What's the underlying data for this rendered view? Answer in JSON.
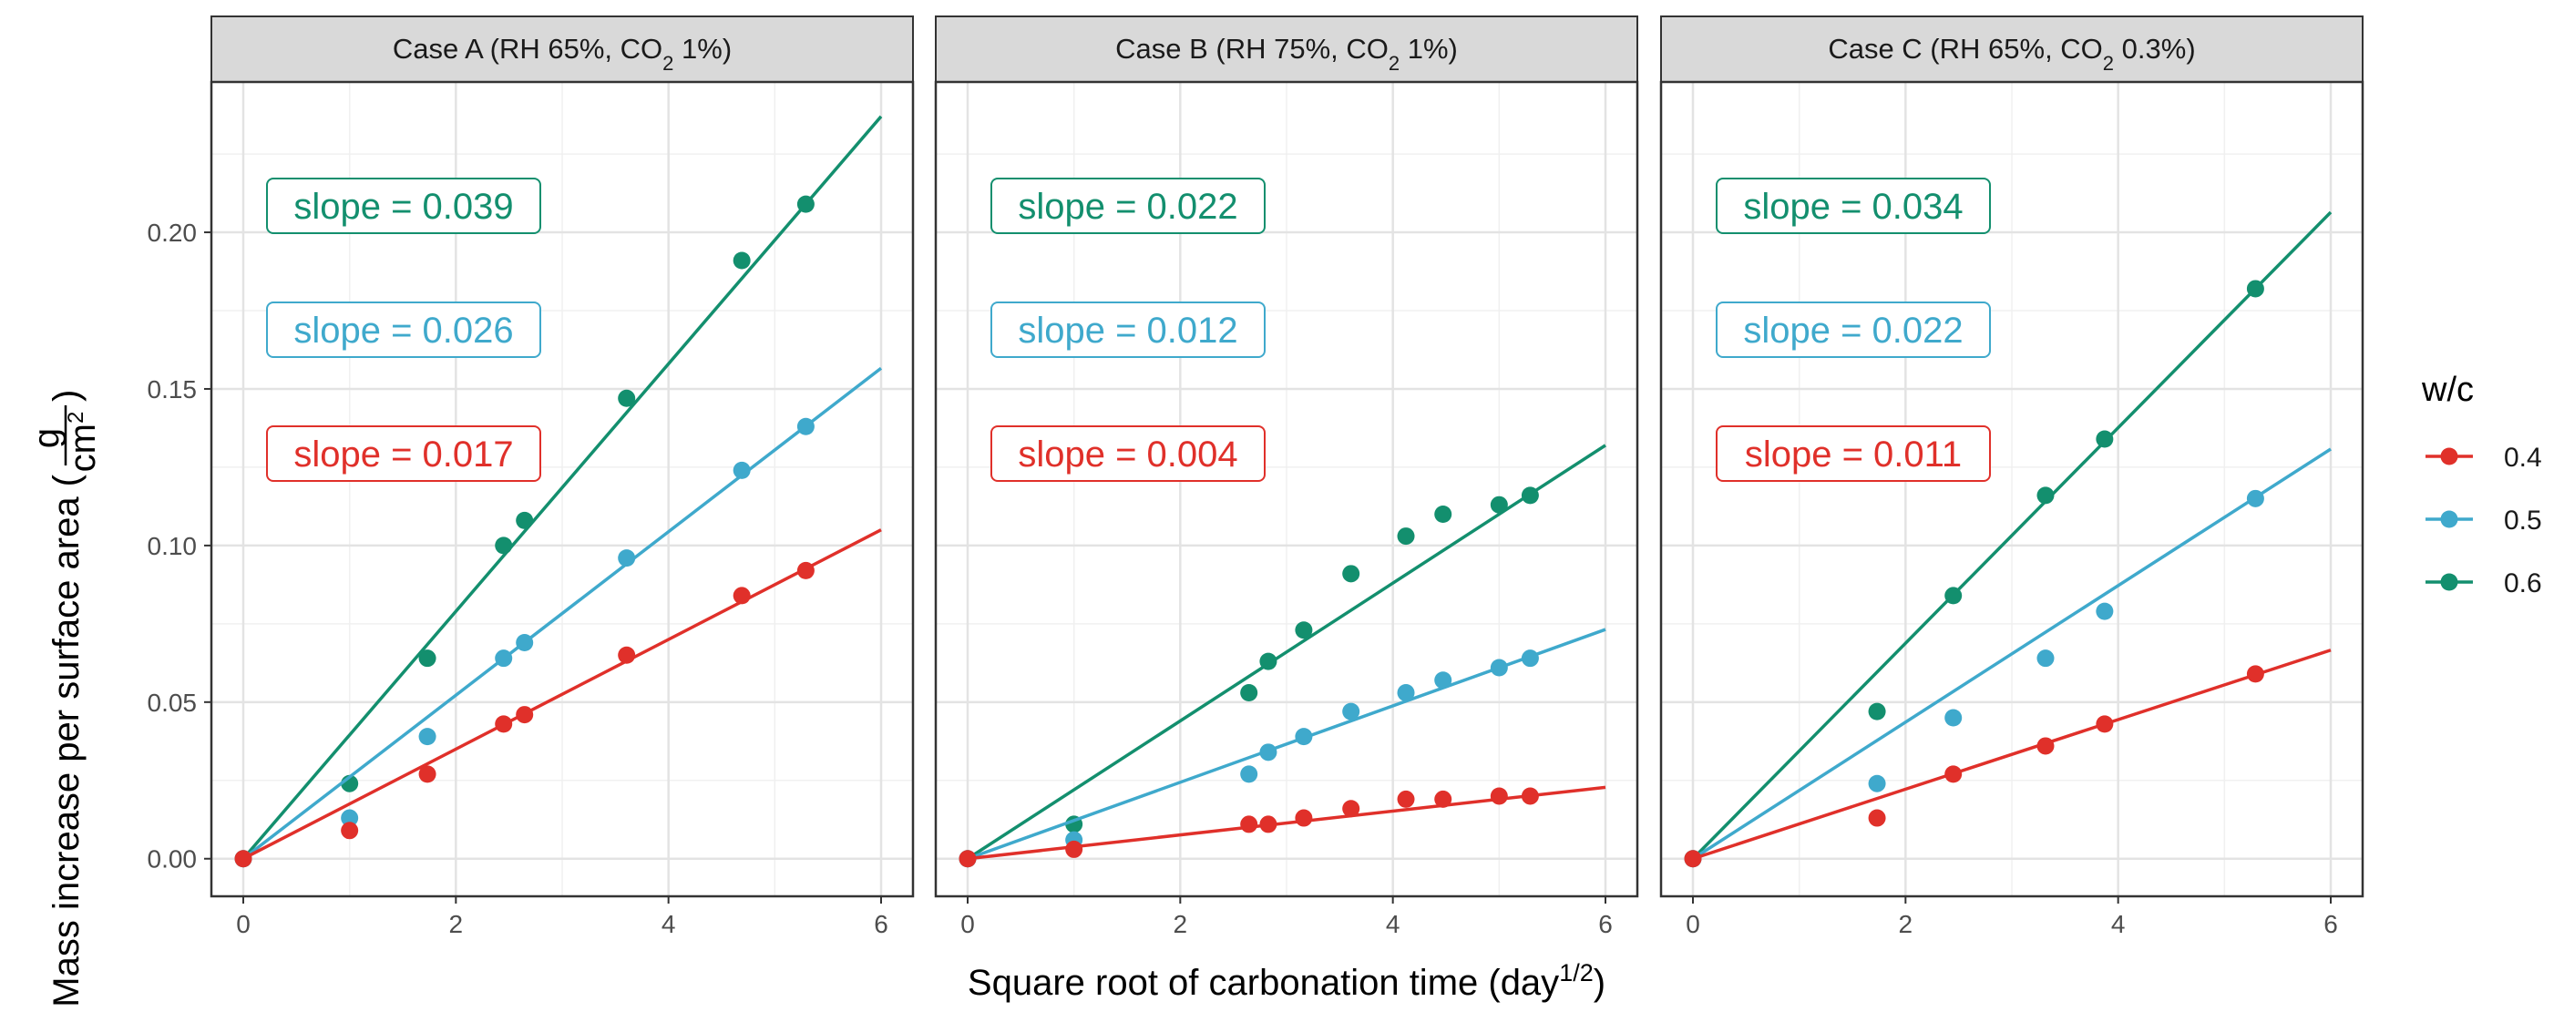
{
  "chart_data": {
    "type": "scatter",
    "title": "",
    "xlabel": "Square root of carbonation time (day",
    "xlabel_sup": "1/2",
    "xlabel_suffix": ")",
    "ylabel": "Mass increase per surface area (",
    "ylabel_frac_num": "g",
    "ylabel_frac_den": "cm",
    "ylabel_frac_den_sup": "2",
    "ylabel_suffix": ")",
    "xlim": [
      -0.3,
      6.3
    ],
    "ylim": [
      -0.012,
      0.248
    ],
    "x_ticks": [
      0,
      2,
      4,
      6
    ],
    "x_tick_labels": [
      "0",
      "2",
      "4",
      "6"
    ],
    "y_ticks": [
      0,
      0.05,
      0.1,
      0.15,
      0.2
    ],
    "y_tick_labels": [
      "0.00",
      "0.05",
      "0.10",
      "0.15",
      "0.20"
    ],
    "grid": true,
    "legend": {
      "title": "w/c",
      "position": "right",
      "entries": [
        {
          "label": "0.4",
          "color": "#E0302A"
        },
        {
          "label": "0.5",
          "color": "#3FA9CC"
        },
        {
          "label": "0.6",
          "color": "#138F6E"
        }
      ]
    },
    "facets": [
      {
        "strip_text": "Case A (RH 65%, CO",
        "strip_sub": "2",
        "strip_suffix": " 1%)",
        "series": [
          {
            "name": "0.6",
            "color": "#138F6E",
            "slope": 0.0395,
            "slope_label": "slope = 0.039",
            "points": [
              [
                0,
                0
              ],
              [
                1,
                0.024
              ],
              [
                1.732,
                0.064
              ],
              [
                2.449,
                0.1
              ],
              [
                2.646,
                0.108
              ],
              [
                3.606,
                0.147
              ],
              [
                4.69,
                0.191
              ],
              [
                5.292,
                0.209
              ]
            ]
          },
          {
            "name": "0.5",
            "color": "#3FA9CC",
            "slope": 0.0261,
            "slope_label": "slope = 0.026",
            "points": [
              [
                0,
                0
              ],
              [
                1,
                0.013
              ],
              [
                1.732,
                0.039
              ],
              [
                2.449,
                0.064
              ],
              [
                2.646,
                0.069
              ],
              [
                3.606,
                0.096
              ],
              [
                4.69,
                0.124
              ],
              [
                5.292,
                0.138
              ]
            ]
          },
          {
            "name": "0.4",
            "color": "#E0302A",
            "slope": 0.0175,
            "slope_label": "slope = 0.017",
            "points": [
              [
                0,
                0
              ],
              [
                1,
                0.009
              ],
              [
                1.732,
                0.027
              ],
              [
                2.449,
                0.043
              ],
              [
                2.646,
                0.046
              ],
              [
                3.606,
                0.065
              ],
              [
                4.69,
                0.084
              ],
              [
                5.292,
                0.092
              ]
            ]
          }
        ]
      },
      {
        "strip_text": "Case B (RH 75%, CO",
        "strip_sub": "2",
        "strip_suffix": " 1%)",
        "series": [
          {
            "name": "0.6",
            "color": "#138F6E",
            "slope": 0.022,
            "slope_label": "slope = 0.022",
            "points": [
              [
                0,
                0
              ],
              [
                1,
                0.011
              ],
              [
                2.646,
                0.053
              ],
              [
                2.828,
                0.063
              ],
              [
                3.162,
                0.073
              ],
              [
                3.606,
                0.091
              ],
              [
                4.123,
                0.103
              ],
              [
                4.472,
                0.11
              ],
              [
                5,
                0.113
              ],
              [
                5.292,
                0.116
              ]
            ]
          },
          {
            "name": "0.5",
            "color": "#3FA9CC",
            "slope": 0.0122,
            "slope_label": "slope = 0.012",
            "points": [
              [
                0,
                0
              ],
              [
                1,
                0.006
              ],
              [
                2.646,
                0.027
              ],
              [
                2.828,
                0.034
              ],
              [
                3.162,
                0.039
              ],
              [
                3.606,
                0.047
              ],
              [
                4.123,
                0.053
              ],
              [
                4.472,
                0.057
              ],
              [
                5,
                0.061
              ],
              [
                5.292,
                0.064
              ]
            ]
          },
          {
            "name": "0.4",
            "color": "#E0302A",
            "slope": 0.0038,
            "slope_label": "slope = 0.004",
            "points": [
              [
                0,
                0
              ],
              [
                1,
                0.003
              ],
              [
                2.646,
                0.011
              ],
              [
                2.828,
                0.011
              ],
              [
                3.162,
                0.013
              ],
              [
                3.606,
                0.016
              ],
              [
                4.123,
                0.019
              ],
              [
                4.472,
                0.019
              ],
              [
                5,
                0.02
              ],
              [
                5.292,
                0.02
              ]
            ]
          }
        ]
      },
      {
        "strip_text": "Case C (RH 65%, CO",
        "strip_sub": "2",
        "strip_suffix": " 0.3%)",
        "series": [
          {
            "name": "0.6",
            "color": "#138F6E",
            "slope": 0.0344,
            "slope_label": "slope = 0.034",
            "points": [
              [
                0,
                0
              ],
              [
                1.732,
                0.047
              ],
              [
                2.449,
                0.084
              ],
              [
                3.317,
                0.116
              ],
              [
                3.873,
                0.134
              ],
              [
                5.292,
                0.182
              ]
            ]
          },
          {
            "name": "0.5",
            "color": "#3FA9CC",
            "slope": 0.0218,
            "slope_label": "slope = 0.022",
            "points": [
              [
                0,
                0
              ],
              [
                1.732,
                0.024
              ],
              [
                2.449,
                0.045
              ],
              [
                3.317,
                0.064
              ],
              [
                3.873,
                0.079
              ],
              [
                5.292,
                0.115
              ]
            ]
          },
          {
            "name": "0.4",
            "color": "#E0302A",
            "slope": 0.0111,
            "slope_label": "slope = 0.011",
            "points": [
              [
                0,
                0
              ],
              [
                1.732,
                0.013
              ],
              [
                2.449,
                0.027
              ],
              [
                3.317,
                0.036
              ],
              [
                3.873,
                0.043
              ],
              [
                5.292,
                0.059
              ]
            ]
          }
        ]
      }
    ]
  }
}
